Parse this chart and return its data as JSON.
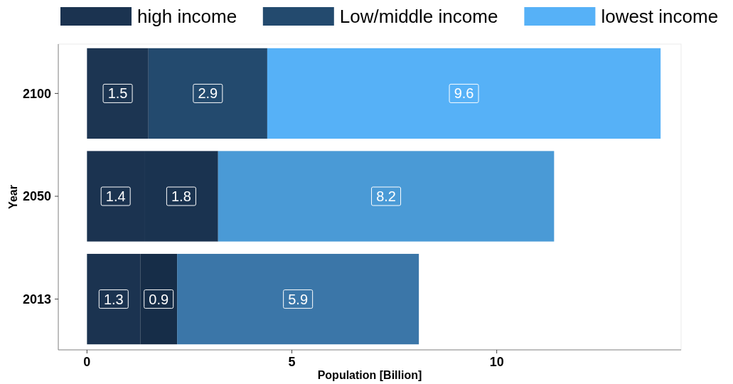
{
  "chart_data": {
    "type": "bar",
    "orientation": "horizontal",
    "stacked": true,
    "xlabel": "Population [Billion]",
    "ylabel": "Year",
    "categories": [
      "2100",
      "2050",
      "2013"
    ],
    "series": [
      {
        "name": "high income",
        "color": "#1b3350",
        "colors": [
          "#1c3552",
          "#1b3350",
          "#1b3350"
        ],
        "values": [
          1.5,
          1.4,
          1.3
        ]
      },
      {
        "name": "Low/middle income",
        "color": "#234a6e",
        "colors": [
          "#234a6e",
          "#1a3350",
          "#162d48"
        ],
        "values": [
          2.9,
          1.8,
          0.9
        ]
      },
      {
        "name": "lowest income",
        "color": "#56b1f7",
        "colors": [
          "#56b1f7",
          "#4a9ad6",
          "#3b76a8"
        ],
        "values": [
          9.6,
          8.2,
          5.9
        ]
      }
    ],
    "xlim": [
      -0.7,
      14.5
    ],
    "xticks": [
      0,
      5,
      10
    ],
    "grid": false,
    "legend": "top",
    "data_labels": true
  }
}
